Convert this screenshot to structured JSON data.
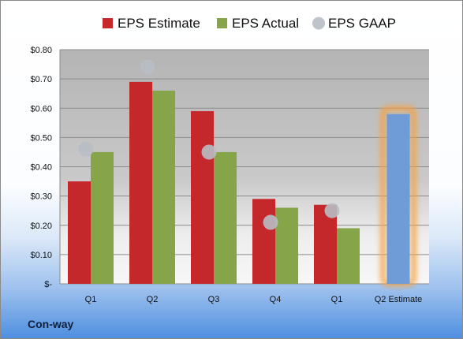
{
  "company": "Con-way",
  "chart_data": {
    "type": "bar",
    "categories": [
      "Q1",
      "Q2",
      "Q3",
      "Q4",
      "Q1",
      "Q2 Estimate"
    ],
    "ylim": [
      0,
      0.8
    ],
    "yticks": [
      {
        "value": 0,
        "label": "$-"
      },
      {
        "value": 0.1,
        "label": "$0.10"
      },
      {
        "value": 0.2,
        "label": "$0.20"
      },
      {
        "value": 0.3,
        "label": "$0.30"
      },
      {
        "value": 0.4,
        "label": "$0.40"
      },
      {
        "value": 0.5,
        "label": "$0.50"
      },
      {
        "value": 0.6,
        "label": "$0.60"
      },
      {
        "value": 0.7,
        "label": "$0.70"
      },
      {
        "value": 0.8,
        "label": "$0.80"
      }
    ],
    "grid": true,
    "legend_position": "top",
    "series": [
      {
        "name": "EPS Estimate",
        "type": "bar",
        "color": "#c5282a",
        "values": [
          0.35,
          0.69,
          0.59,
          0.29,
          0.27,
          null
        ]
      },
      {
        "name": "EPS Actual",
        "type": "bar",
        "color": "#86a548",
        "values": [
          0.45,
          0.66,
          0.45,
          0.26,
          0.19,
          null
        ]
      },
      {
        "name": "EPS GAAP",
        "type": "scatter",
        "color": "#b8bcc4",
        "values": [
          0.46,
          0.74,
          0.45,
          0.21,
          0.25,
          null
        ]
      }
    ],
    "estimate": {
      "category": "Q2 Estimate",
      "value": 0.58,
      "color": "#6f9bd6",
      "glow": "#f5a243"
    }
  }
}
